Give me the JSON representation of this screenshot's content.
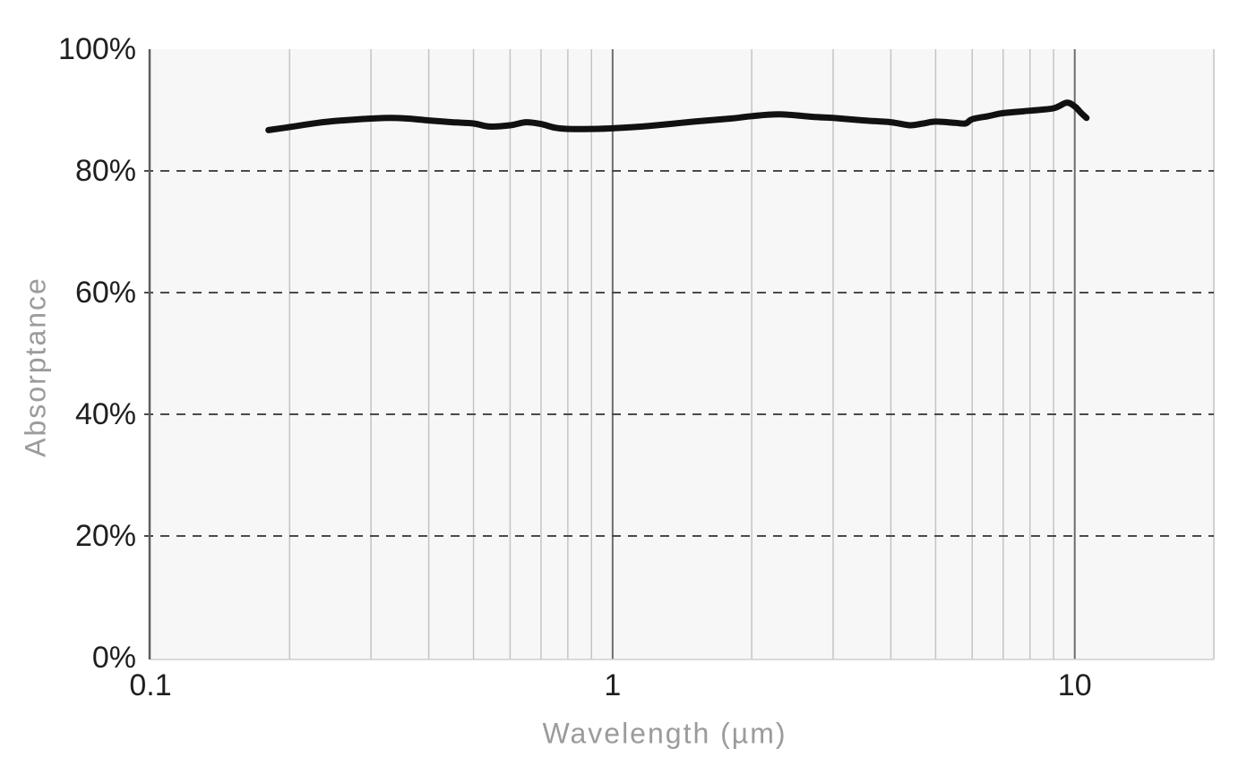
{
  "colors": {
    "page_bg": "#ffffff",
    "plot_bg": "#f7f7f7",
    "grid_minor": "#c4c4c4",
    "grid_major": "#6e6e6e",
    "grid_dashed": "#4a4a4a",
    "axis_left": "#5d5d5d",
    "axis_bottom": "#cfcfcf",
    "line": "#111111",
    "tick_label": "#1f1f1f",
    "axis_title": "#9b9b9b"
  },
  "chart_data": {
    "type": "line",
    "title": "",
    "xlabel": "Wavelength (µm)",
    "ylabel": "Absorptance",
    "x_scale": "log",
    "xlim": [
      0.1,
      20
    ],
    "ylim": [
      0,
      100
    ],
    "grid": "on",
    "legend": "none",
    "x_ticks": [
      {
        "value": 0.1,
        "label": "0.1"
      },
      {
        "value": 1,
        "label": "1"
      },
      {
        "value": 10,
        "label": "10"
      }
    ],
    "y_ticks": [
      {
        "value": 0,
        "label": "0%"
      },
      {
        "value": 20,
        "label": "20%"
      },
      {
        "value": 40,
        "label": "40%"
      },
      {
        "value": 60,
        "label": "60%"
      },
      {
        "value": 80,
        "label": "80%"
      },
      {
        "value": 100,
        "label": "100%"
      }
    ],
    "x_gridlines_minor": [
      0.2,
      0.3,
      0.4,
      0.5,
      0.6,
      0.7,
      0.8,
      0.9,
      2,
      3,
      4,
      5,
      6,
      7,
      8,
      9,
      20
    ],
    "x_gridlines_major": [
      1,
      10
    ],
    "y_gridlines_dashed": [
      20,
      40,
      60,
      80
    ],
    "series": [
      {
        "name": "Absorptance",
        "color": "#111111",
        "units": {
          "x": "µm",
          "y": "%"
        },
        "points": [
          [
            0.18,
            86.7
          ],
          [
            0.2,
            87.2
          ],
          [
            0.23,
            87.9
          ],
          [
            0.26,
            88.3
          ],
          [
            0.3,
            88.6
          ],
          [
            0.33,
            88.7
          ],
          [
            0.36,
            88.6
          ],
          [
            0.4,
            88.3
          ],
          [
            0.45,
            88.0
          ],
          [
            0.5,
            87.8
          ],
          [
            0.54,
            87.3
          ],
          [
            0.6,
            87.5
          ],
          [
            0.65,
            88.0
          ],
          [
            0.7,
            87.7
          ],
          [
            0.75,
            87.1
          ],
          [
            0.8,
            86.9
          ],
          [
            0.9,
            86.9
          ],
          [
            1.0,
            87.0
          ],
          [
            1.2,
            87.4
          ],
          [
            1.5,
            88.1
          ],
          [
            1.8,
            88.6
          ],
          [
            2.0,
            89.0
          ],
          [
            2.3,
            89.3
          ],
          [
            2.7,
            88.9
          ],
          [
            3.0,
            88.7
          ],
          [
            3.5,
            88.3
          ],
          [
            4.0,
            88.0
          ],
          [
            4.4,
            87.5
          ],
          [
            4.7,
            87.8
          ],
          [
            5.0,
            88.1
          ],
          [
            5.5,
            87.9
          ],
          [
            5.8,
            87.8
          ],
          [
            6.0,
            88.5
          ],
          [
            6.5,
            89.0
          ],
          [
            7.0,
            89.5
          ],
          [
            8.0,
            89.9
          ],
          [
            9.0,
            90.3
          ],
          [
            9.6,
            91.2
          ],
          [
            10.0,
            90.6
          ],
          [
            10.3,
            89.6
          ],
          [
            10.6,
            88.7
          ]
        ]
      }
    ]
  }
}
